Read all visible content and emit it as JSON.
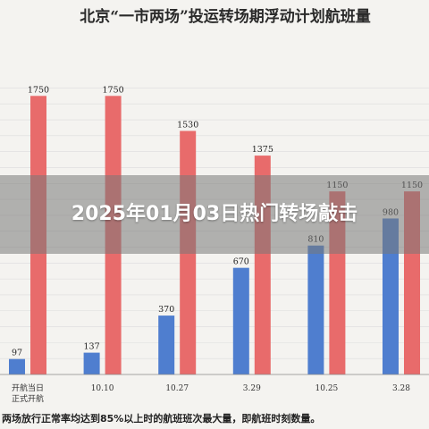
{
  "chart_data": {
    "type": "bar",
    "title": "北京“一市两场”投运转场期浮动计划航班量",
    "categories": [
      [
        "开航当日",
        "正式开航"
      ],
      "10.10",
      "10.27",
      "3.29",
      "10.25",
      "3.28"
    ],
    "series": [
      {
        "values": [
          97,
          137,
          370,
          670,
          810,
          980
        ],
        "color": "#4f7ecf"
      },
      {
        "values": [
          1750,
          1750,
          1530,
          1375,
          1150,
          1150
        ],
        "color": "#e86b6b"
      }
    ],
    "ylim": [
      0,
      1850
    ],
    "grid": true,
    "footnote": "两场放行正常率均达到85%以上时的航班班次最大量，即航班时刻数量。"
  },
  "overlay": {
    "headline": "2025年01月03日热门转场敲击"
  }
}
